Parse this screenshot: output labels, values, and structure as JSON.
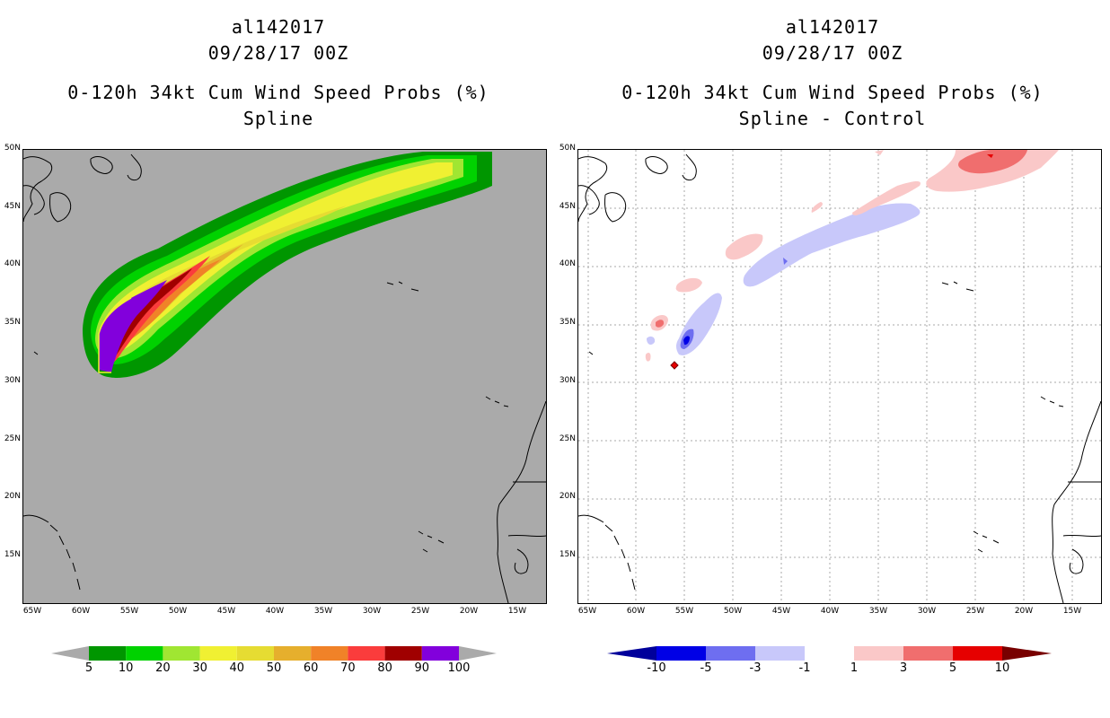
{
  "left_panel": {
    "storm_id": "al142017",
    "datetime": "09/28/17 00Z",
    "product": "0-120h 34kt Cum Wind Speed Probs (%)",
    "subtitle": "Spline",
    "colorbar_labels": [
      "5",
      "10",
      "20",
      "30",
      "40",
      "50",
      "60",
      "70",
      "80",
      "90",
      "100"
    ],
    "colorbar_colors": [
      "#009600",
      "#00d200",
      "#a0e632",
      "#f0f032",
      "#e6dc32",
      "#e6af2d",
      "#f08228",
      "#fa3c3c",
      "#a00000",
      "#8200dc"
    ]
  },
  "right_panel": {
    "storm_id": "al142017",
    "datetime": "09/28/17 00Z",
    "product": "0-120h 34kt Cum Wind Speed Probs (%)",
    "subtitle": "Spline - Control",
    "colorbar_labels": [
      "-10",
      "-5",
      "-3",
      "-1",
      "1",
      "3",
      "5",
      "10"
    ],
    "colorbar_colors": [
      "#0000e6",
      "#6e6ef0",
      "#c8c8fa",
      "#ffffff",
      "#fac8c8",
      "#f06e6e",
      "#e60000"
    ],
    "colorbar_ends": [
      "#00009b",
      "#780000"
    ]
  },
  "axes": {
    "lat_labels": [
      "50N",
      "45N",
      "40N",
      "35N",
      "30N",
      "25N",
      "20N",
      "15N"
    ],
    "lon_labels": [
      "65W",
      "60W",
      "55W",
      "50W",
      "45W",
      "40W",
      "35W",
      "30W",
      "25W",
      "20W",
      "15W"
    ]
  }
}
